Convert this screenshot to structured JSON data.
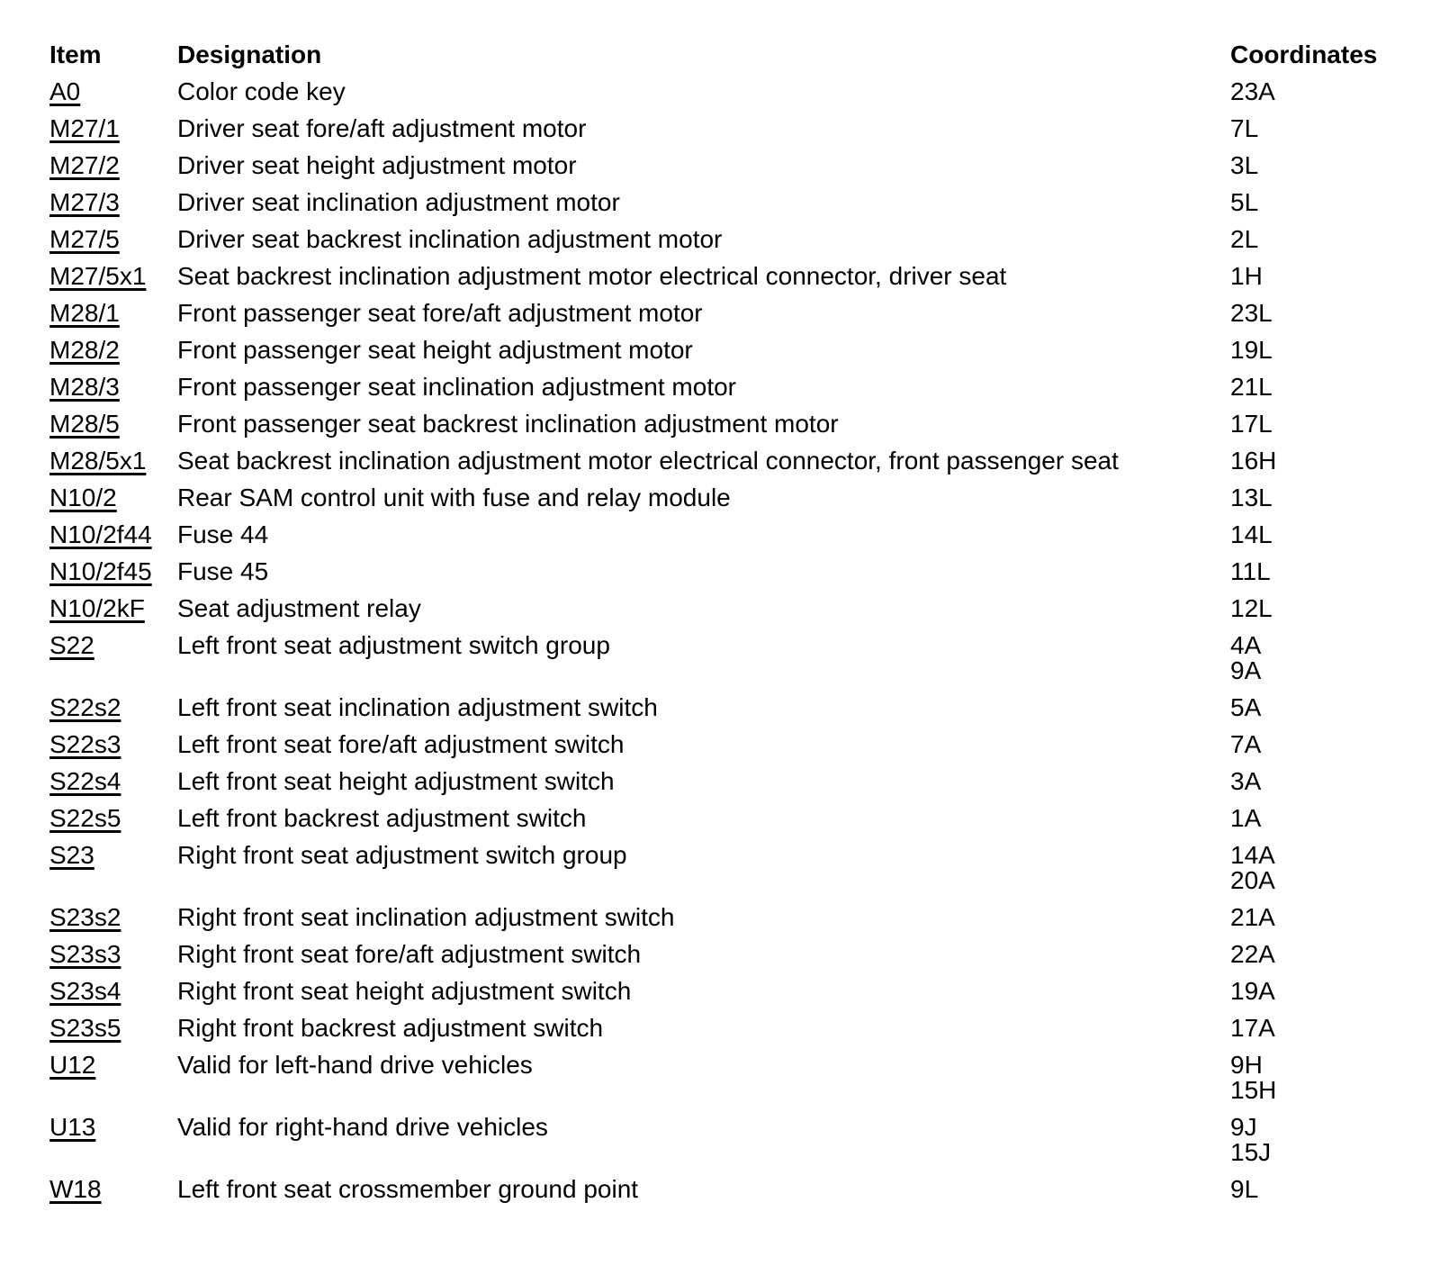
{
  "page": {
    "background_color": "#ffffff",
    "text_color": "#000000"
  },
  "table": {
    "headers": {
      "item": "Item",
      "designation": "Designation",
      "coordinates": "Coordinates"
    },
    "rows": [
      {
        "item": "A0",
        "designation": "Color code key",
        "coordinates": [
          "23A"
        ]
      },
      {
        "item": "M27/1",
        "designation": "Driver seat fore/aft adjustment motor",
        "coordinates": [
          "7L"
        ]
      },
      {
        "item": "M27/2",
        "designation": "Driver seat height adjustment motor",
        "coordinates": [
          "3L"
        ]
      },
      {
        "item": "M27/3",
        "designation": "Driver seat inclination adjustment motor",
        "coordinates": [
          "5L"
        ]
      },
      {
        "item": "M27/5",
        "designation": "Driver seat backrest inclination adjustment motor",
        "coordinates": [
          "2L"
        ]
      },
      {
        "item": "M27/5x1",
        "designation": "Seat backrest inclination adjustment motor electrical connector, driver seat",
        "coordinates": [
          "1H"
        ]
      },
      {
        "item": "M28/1",
        "designation": "Front passenger seat fore/aft adjustment motor",
        "coordinates": [
          "23L"
        ]
      },
      {
        "item": "M28/2",
        "designation": "Front passenger seat height adjustment motor",
        "coordinates": [
          "19L"
        ]
      },
      {
        "item": "M28/3",
        "designation": "Front passenger seat inclination adjustment motor",
        "coordinates": [
          "21L"
        ]
      },
      {
        "item": "M28/5",
        "designation": "Front passenger seat backrest inclination adjustment motor",
        "coordinates": [
          "17L"
        ]
      },
      {
        "item": "M28/5x1",
        "designation": "Seat backrest inclination adjustment motor electrical connector, front passenger seat",
        "coordinates": [
          "16H"
        ]
      },
      {
        "item": "N10/2",
        "designation": "Rear SAM control unit with fuse and relay module",
        "coordinates": [
          "13L"
        ]
      },
      {
        "item": "N10/2f44",
        "designation": "Fuse 44",
        "coordinates": [
          "14L"
        ]
      },
      {
        "item": "N10/2f45",
        "designation": "Fuse 45",
        "coordinates": [
          "11L"
        ]
      },
      {
        "item": "N10/2kF",
        "designation": "Seat adjustment relay",
        "coordinates": [
          "12L"
        ]
      },
      {
        "item": "S22",
        "designation": "Left front seat adjustment switch group",
        "coordinates": [
          "4A",
          "9A"
        ]
      },
      {
        "item": "S22s2",
        "designation": "Left front seat inclination adjustment switch",
        "coordinates": [
          "5A"
        ]
      },
      {
        "item": "S22s3",
        "designation": "Left front seat fore/aft adjustment switch",
        "coordinates": [
          "7A"
        ]
      },
      {
        "item": "S22s4",
        "designation": "Left front seat height adjustment switch",
        "coordinates": [
          "3A"
        ]
      },
      {
        "item": "S22s5",
        "designation": "Left front backrest adjustment switch",
        "coordinates": [
          "1A"
        ]
      },
      {
        "item": "S23",
        "designation": "Right front seat adjustment switch group",
        "coordinates": [
          "14A",
          "20A"
        ]
      },
      {
        "item": "S23s2",
        "designation": "Right front seat inclination adjustment switch",
        "coordinates": [
          "21A"
        ]
      },
      {
        "item": "S23s3",
        "designation": "Right front seat fore/aft adjustment switch",
        "coordinates": [
          "22A"
        ]
      },
      {
        "item": "S23s4",
        "designation": "Right front seat height adjustment switch",
        "coordinates": [
          "19A"
        ]
      },
      {
        "item": "S23s5",
        "designation": "Right front backrest adjustment switch",
        "coordinates": [
          "17A"
        ]
      },
      {
        "item": "U12",
        "designation": "Valid for left-hand drive vehicles",
        "coordinates": [
          "9H",
          "15H"
        ]
      },
      {
        "item": "U13",
        "designation": "Valid for right-hand drive vehicles",
        "coordinates": [
          "9J",
          "15J"
        ]
      },
      {
        "item": "W18",
        "designation": "Left front seat crossmember ground point",
        "coordinates": [
          "9L"
        ]
      }
    ]
  }
}
